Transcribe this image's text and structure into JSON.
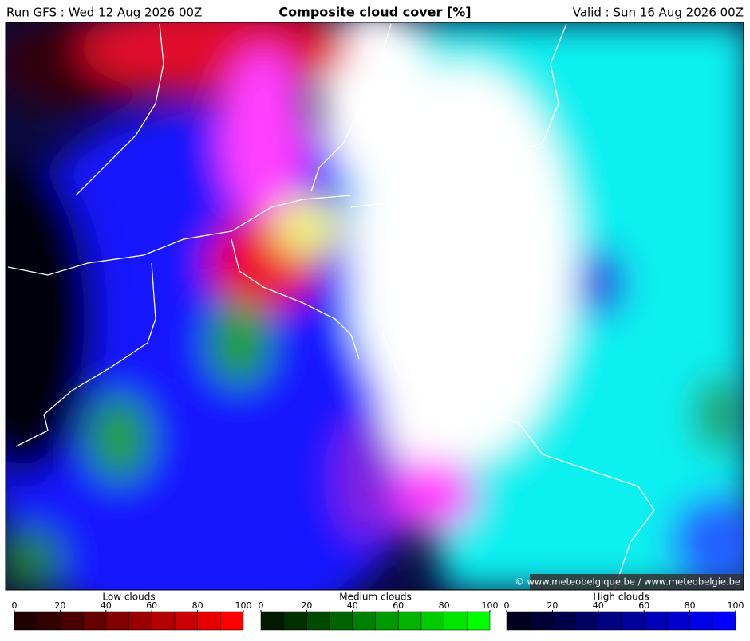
{
  "header": {
    "run": "Run GFS : Wed 12 Aug 2026 00Z",
    "title": "Composite cloud cover [%]",
    "valid": "Valid : Sun 16 Aug 2026 00Z"
  },
  "map": {
    "credit": "© www.meteobelgique.be / www.meteobelgie.be"
  },
  "legends": [
    {
      "title": "Low clouds",
      "ticks": [
        0,
        20,
        40,
        60,
        80,
        100
      ],
      "colors": [
        "#1e0000",
        "#330000",
        "#4a0000",
        "#640000",
        "#800000",
        "#9a0000",
        "#b40000",
        "#cc0000",
        "#e60000",
        "#ff0000"
      ]
    },
    {
      "title": "Medium clouds",
      "ticks": [
        0,
        20,
        40,
        60,
        80,
        100
      ],
      "colors": [
        "#001a00",
        "#003000",
        "#004a00",
        "#006400",
        "#008000",
        "#009a00",
        "#00b400",
        "#00cc00",
        "#00e600",
        "#00ff00"
      ]
    },
    {
      "title": "High clouds",
      "ticks": [
        0,
        20,
        40,
        60,
        80,
        100
      ],
      "colors": [
        "#00001e",
        "#000033",
        "#00004a",
        "#000064",
        "#000080",
        "#00009a",
        "#0000b4",
        "#0000cc",
        "#0000e6",
        "#0000ff"
      ]
    }
  ]
}
